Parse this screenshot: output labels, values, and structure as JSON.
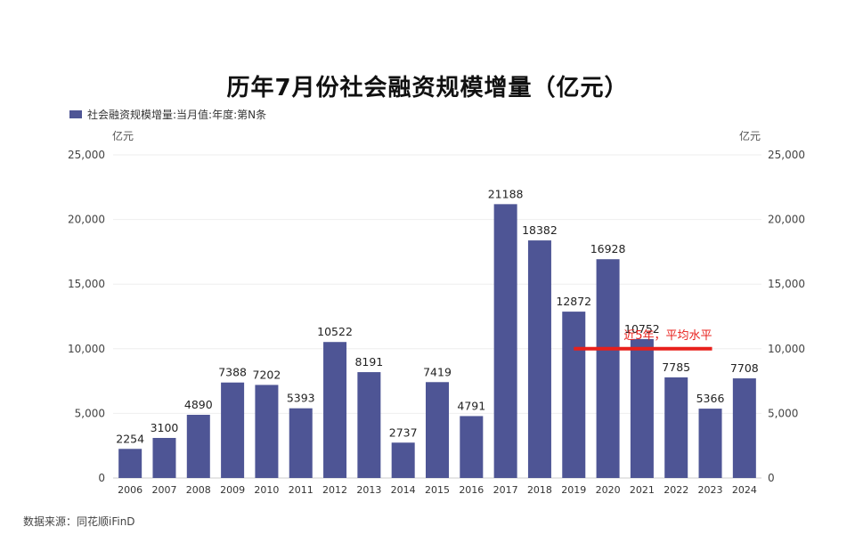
{
  "chart_data": {
    "type": "bar",
    "title": "历年7月份社会融资规模增量（亿元）",
    "legend": [
      "社会融资规模增量:当月值:年度:第N条"
    ],
    "legend_position": "top-left",
    "y_unit_left": "亿元",
    "y_unit_right": "亿元",
    "categories": [
      "2006",
      "2007",
      "2008",
      "2009",
      "2010",
      "2011",
      "2012",
      "2013",
      "2014",
      "2015",
      "2016",
      "2017",
      "2018",
      "2019",
      "2020",
      "2021",
      "2022",
      "2023",
      "2024"
    ],
    "series": [
      {
        "name": "社会融资规模增量:当月值:年度:第N条",
        "values": [
          2254,
          3100,
          4890,
          7388,
          7202,
          5393,
          10522,
          8191,
          2737,
          7419,
          4791,
          21188,
          18382,
          12872,
          16928,
          10752,
          7785,
          5366,
          7708
        ]
      }
    ],
    "data_labels": [
      "2254",
      "3100",
      "4890",
      "7388",
      "7202",
      "5393",
      "10522",
      "8191",
      "2737",
      "7419",
      "4791",
      "21188",
      "18382",
      "12872",
      "16928",
      "10752",
      "7785",
      "5366",
      "7708"
    ],
    "ylim": [
      0,
      25000
    ],
    "yticks": [
      0,
      5000,
      10000,
      15000,
      20000,
      25000
    ],
    "ytick_labels": [
      "0",
      "5,000",
      "10,000",
      "15,000",
      "20,000",
      "25,000"
    ],
    "grid": true,
    "reference_line": {
      "label": "近5年，平均水平",
      "value": 10000,
      "x_start": "2019",
      "x_end": "2023",
      "color": "#e8201c"
    },
    "bar_color": "#4e5595",
    "source": "数据来源：同花顺iFinD"
  }
}
